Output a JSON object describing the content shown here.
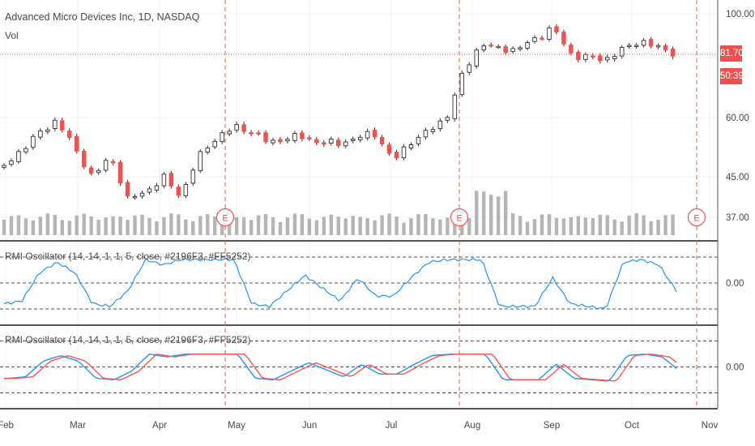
{
  "chart_data": {
    "type": "candlestick",
    "title": "Advanced Micro Devices Inc, 1D, NASDAQ",
    "volume_label": "Vol",
    "indicator_label": "RMI Oscillator (14, 14, 1, 1, 5, close, #2196F3, #FF5252)",
    "last_price": "81.70",
    "countdown": "50:39",
    "price_ticks": [
      "100.00",
      "60.00",
      "45.00",
      "37.00"
    ],
    "oscillator_tick": "0.00",
    "month_labels": [
      "Feb",
      "Mar",
      "Apr",
      "May",
      "Jun",
      "Jul",
      "Aug",
      "Sep",
      "Oct",
      "Nov"
    ],
    "earnings_marker": "E",
    "earnings_months": [
      "Apr",
      "Jul",
      "Oct"
    ],
    "price_close_anchors": [
      [
        "Feb",
        47.5
      ],
      [
        "Feb",
        52
      ],
      [
        "Feb",
        56
      ],
      [
        "Feb",
        59.5
      ],
      [
        "Mar",
        52
      ],
      [
        "Mar",
        45
      ],
      [
        "Mar",
        50
      ],
      [
        "Mar",
        40.5
      ],
      [
        "Mar",
        42
      ],
      [
        "Mar",
        45
      ],
      [
        "Apr",
        41
      ],
      [
        "Apr",
        50
      ],
      [
        "Apr",
        55
      ],
      [
        "Apr",
        57.5
      ],
      [
        "Apr",
        56.5
      ],
      [
        "May",
        53.5
      ],
      [
        "May",
        55
      ],
      [
        "May",
        55
      ],
      [
        "Jun",
        53.5
      ],
      [
        "Jun",
        53.5
      ],
      [
        "Jun",
        55
      ],
      [
        "Jun",
        56
      ],
      [
        "Jul",
        49
      ],
      [
        "Jul",
        54
      ],
      [
        "Jul",
        56.5
      ],
      [
        "Jul",
        60
      ],
      [
        "Jul",
        76
      ],
      [
        "Aug",
        86.5
      ],
      [
        "Aug",
        84
      ],
      [
        "Aug",
        84
      ],
      [
        "Aug",
        88.5
      ],
      [
        "Sep",
        94
      ],
      [
        "Sep",
        82
      ],
      [
        "Sep",
        80.5
      ],
      [
        "Sep",
        80
      ],
      [
        "Oct",
        84
      ],
      [
        "Oct",
        88
      ],
      [
        "Oct",
        84.5
      ],
      [
        "Oct",
        82
      ]
    ],
    "volume_levels": "relative bars, taller around earnings in late Jul",
    "rmi_series": [
      {
        "name": "",
        "color": "#2196F3",
        "values": [
          -0.8,
          -0.7,
          0.4,
          0.8,
          0.4,
          -0.8,
          -0.9,
          -0.3,
          0.9,
          0.7,
          0.9,
          0.9,
          0.9,
          0.9,
          -0.8,
          -0.9,
          -0.3,
          0.3,
          -0.2,
          -0.7,
          0.2,
          -0.5,
          -0.5,
          0.2,
          0.8,
          0.9,
          0.9,
          0.9,
          -0.9,
          -0.9,
          -0.9,
          0.2,
          -0.8,
          -0.9,
          -1.0,
          0.8,
          0.9,
          0.7,
          -0.3
        ]
      }
    ],
    "rmi_smoothed": [
      {
        "name": "",
        "color": "#2196F3"
      },
      {
        "name": "",
        "color": "#FF5252"
      }
    ],
    "colors": {
      "up": "#26a69a",
      "down": "#ef5350",
      "blue": "#2196F3",
      "red": "#FF5252",
      "volume": "#b5b5b5"
    }
  }
}
